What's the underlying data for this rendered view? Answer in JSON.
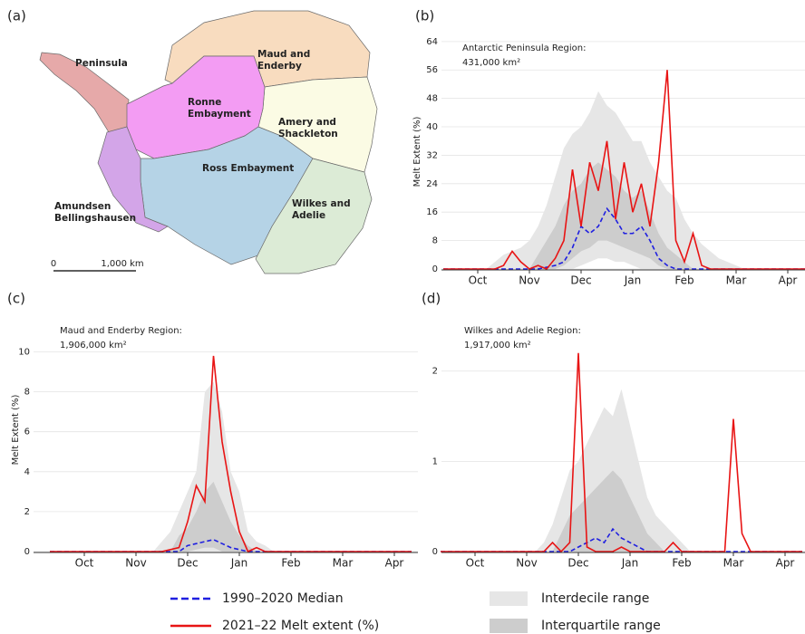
{
  "chart_data": [
    {
      "type": "map",
      "panel": "(a)",
      "regions": [
        {
          "label": [
            "Peninsula"
          ],
          "color": "#e6a9a9"
        },
        {
          "label": [
            "Maud and",
            "Enderby"
          ],
          "color": "#f8dcbf"
        },
        {
          "label": [
            "Amery and",
            "Shackleton"
          ],
          "color": "#fbfbe4"
        },
        {
          "label": [
            "Ronne",
            "Embayment"
          ],
          "color": "#f39cf3"
        },
        {
          "label": [
            "Ross Embayment"
          ],
          "color": "#b5d3e6"
        },
        {
          "label": [
            "Wilkes and",
            "Adelie"
          ],
          "color": "#dcebd6"
        },
        {
          "label": [
            "Amundsen",
            "Bellingshausen"
          ],
          "color": "#d3a5e8"
        }
      ],
      "scale_labels": [
        "0",
        "1,000 km"
      ]
    },
    {
      "type": "line",
      "panel": "(b)",
      "ylabel": "Melt Extent (%)",
      "annotation": [
        "Antarctic Peninsula Region:",
        "431,000 km²"
      ],
      "categories": [
        null,
        null,
        null,
        null,
        "Oct",
        null,
        null,
        null,
        null,
        null,
        "Nov",
        null,
        null,
        null,
        null,
        null,
        "Dec",
        null,
        null,
        null,
        null,
        null,
        "Jan",
        null,
        null,
        null,
        null,
        null,
        "Feb",
        null,
        null,
        null,
        null,
        null,
        "Mar",
        null,
        null,
        null,
        null,
        null,
        "Apr",
        null,
        null
      ],
      "ylim": [
        0,
        66
      ],
      "yticks": [
        0,
        8,
        16,
        24,
        32,
        40,
        48,
        56,
        64
      ],
      "grid": true,
      "series": [
        {
          "name": "Interdecile range",
          "color": "#e6e6e6",
          "low": [
            0,
            0,
            0,
            0,
            0,
            0,
            0,
            0,
            0,
            0,
            0,
            0,
            0,
            0,
            0,
            0,
            1,
            2,
            3,
            3,
            2,
            2,
            1,
            0,
            0,
            0,
            0,
            0,
            0,
            0,
            0,
            0,
            0,
            0,
            0,
            0,
            0,
            0,
            0,
            0,
            0,
            0,
            0
          ],
          "high": [
            0,
            0,
            0,
            0,
            0,
            0,
            2,
            4,
            5,
            6,
            8,
            12,
            18,
            26,
            34,
            38,
            40,
            44,
            50,
            46,
            44,
            40,
            36,
            36,
            30,
            26,
            22,
            20,
            14,
            10,
            7,
            5,
            3,
            2,
            1,
            0,
            0,
            0,
            0,
            0,
            0,
            0,
            0
          ]
        },
        {
          "name": "Interquartile range",
          "color": "#cdcdcd",
          "low": [
            0,
            0,
            0,
            0,
            0,
            0,
            0,
            0,
            0,
            0,
            0,
            0,
            0,
            0,
            1,
            3,
            5,
            6,
            8,
            8,
            7,
            6,
            5,
            4,
            3,
            1,
            0,
            0,
            0,
            0,
            0,
            0,
            0,
            0,
            0,
            0,
            0,
            0,
            0,
            0,
            0,
            0,
            0
          ],
          "high": [
            0,
            0,
            0,
            0,
            0,
            0,
            0,
            0,
            0,
            0,
            0,
            4,
            8,
            12,
            18,
            22,
            24,
            28,
            30,
            28,
            26,
            22,
            20,
            22,
            16,
            10,
            6,
            4,
            2,
            0,
            0,
            0,
            0,
            0,
            0,
            0,
            0,
            0,
            0,
            0,
            0,
            0,
            0
          ]
        },
        {
          "name": "1990–2020 Median",
          "color": "#1f1fe0",
          "dash": true,
          "values": [
            0,
            0,
            0,
            0,
            0,
            0,
            0,
            0,
            0,
            0,
            0,
            0,
            0.5,
            1,
            2,
            6,
            12,
            10,
            12,
            17,
            14,
            10,
            10,
            12,
            8,
            3,
            1,
            0,
            0,
            0,
            0,
            0,
            0,
            0,
            0,
            0,
            0,
            0,
            0,
            0,
            0,
            0,
            0
          ]
        },
        {
          "name": "2021–22 Melt extent (%)",
          "color": "#e81414",
          "values": [
            0,
            0,
            0,
            0,
            0,
            0,
            0,
            1,
            5,
            2,
            0,
            1,
            0,
            3,
            8,
            28,
            12,
            30,
            22,
            36,
            14,
            30,
            16,
            24,
            12,
            30,
            56,
            8,
            2,
            10,
            1,
            0,
            0,
            0,
            0,
            0,
            0,
            0,
            0,
            0,
            0,
            0,
            0
          ]
        }
      ]
    },
    {
      "type": "line",
      "panel": "(c)",
      "ylabel": "Melt Extent (%)",
      "annotation": [
        "Maud and Enderby Region:",
        "1,906,000 km²"
      ],
      "categories": [
        null,
        null,
        null,
        null,
        "Oct",
        null,
        null,
        null,
        null,
        null,
        "Nov",
        null,
        null,
        null,
        null,
        null,
        "Dec",
        null,
        null,
        null,
        null,
        null,
        "Jan",
        null,
        null,
        null,
        null,
        null,
        "Feb",
        null,
        null,
        null,
        null,
        null,
        "Mar",
        null,
        null,
        null,
        null,
        null,
        "Apr",
        null,
        null
      ],
      "ylim": [
        0,
        12.2
      ],
      "yticks": [
        0,
        2,
        4,
        6,
        8,
        10
      ],
      "grid": true,
      "series": [
        {
          "color": "#e6e6e6",
          "low": [
            0,
            0,
            0,
            0,
            0,
            0,
            0,
            0,
            0,
            0,
            0,
            0,
            0,
            0,
            0,
            0,
            0,
            0,
            0,
            0,
            0,
            0,
            0,
            0,
            0,
            0,
            0,
            0,
            0,
            0,
            0,
            0,
            0,
            0,
            0,
            0,
            0,
            0,
            0,
            0,
            0,
            0,
            0
          ],
          "high": [
            0,
            0,
            0,
            0,
            0,
            0,
            0,
            0,
            0,
            0,
            0,
            0,
            0,
            0.5,
            1,
            2,
            3,
            4,
            8,
            8.5,
            7,
            4,
            3,
            1,
            0.5,
            0.3,
            0,
            0,
            0,
            0,
            0,
            0,
            0,
            0,
            0,
            0,
            0,
            0,
            0,
            0,
            0,
            0,
            0
          ]
        },
        {
          "color": "#cdcdcd",
          "low": [
            0,
            0,
            0,
            0,
            0,
            0,
            0,
            0,
            0,
            0,
            0,
            0,
            0,
            0,
            0,
            0,
            0,
            0.1,
            0.2,
            0.2,
            0,
            0,
            0,
            0,
            0,
            0,
            0,
            0,
            0,
            0,
            0,
            0,
            0,
            0,
            0,
            0,
            0,
            0,
            0,
            0,
            0,
            0,
            0
          ],
          "high": [
            0,
            0,
            0,
            0,
            0,
            0,
            0,
            0,
            0,
            0,
            0,
            0,
            0,
            0,
            0,
            0.8,
            1.2,
            2,
            3,
            3.5,
            2.5,
            1.5,
            0.8,
            0.3,
            0,
            0,
            0,
            0,
            0,
            0,
            0,
            0,
            0,
            0,
            0,
            0,
            0,
            0,
            0,
            0,
            0,
            0,
            0
          ]
        },
        {
          "color": "#1f1fe0",
          "dash": true,
          "values": [
            0,
            0,
            0,
            0,
            0,
            0,
            0,
            0,
            0,
            0,
            0,
            0,
            0,
            0,
            0,
            0,
            0.3,
            0.4,
            0.5,
            0.6,
            0.4,
            0.2,
            0.1,
            0,
            0,
            0,
            0,
            0,
            0,
            0,
            0,
            0,
            0,
            0,
            0,
            0,
            0,
            0,
            0,
            0,
            0,
            0,
            0
          ]
        },
        {
          "color": "#e81414",
          "values": [
            0,
            0,
            0,
            0,
            0,
            0,
            0,
            0,
            0,
            0,
            0,
            0,
            0,
            0,
            0.1,
            0.2,
            1.5,
            3.3,
            2.5,
            9.8,
            5.5,
            3,
            1,
            0,
            0.2,
            0,
            0,
            0,
            0,
            0,
            0,
            0,
            0,
            0,
            0,
            0,
            0,
            0,
            0,
            0,
            0,
            0,
            0
          ]
        }
      ]
    },
    {
      "type": "line",
      "panel": "(d)",
      "annotation": [
        "Wilkes and Adelie Region:",
        "1,917,000 km²"
      ],
      "categories": [
        null,
        null,
        null,
        null,
        "Oct",
        null,
        null,
        null,
        null,
        null,
        "Nov",
        null,
        null,
        null,
        null,
        null,
        "Dec",
        null,
        null,
        null,
        null,
        null,
        "Jan",
        null,
        null,
        null,
        null,
        null,
        "Feb",
        null,
        null,
        null,
        null,
        null,
        "Mar",
        null,
        null,
        null,
        null,
        null,
        "Apr",
        null,
        null
      ],
      "ylim": [
        0,
        2.7
      ],
      "yticks": [
        0,
        1,
        2
      ],
      "grid": true,
      "series": [
        {
          "color": "#e6e6e6",
          "low": [
            0,
            0,
            0,
            0,
            0,
            0,
            0,
            0,
            0,
            0,
            0,
            0,
            0,
            0,
            0,
            0,
            0,
            0,
            0,
            0,
            0,
            0,
            0,
            0,
            0,
            0,
            0,
            0,
            0,
            0,
            0,
            0,
            0,
            0,
            0,
            0,
            0,
            0,
            0,
            0,
            0,
            0,
            0
          ],
          "high": [
            0,
            0,
            0,
            0,
            0,
            0,
            0,
            0,
            0,
            0,
            0,
            0,
            0.1,
            0.3,
            0.6,
            0.9,
            1.0,
            1.2,
            1.4,
            1.6,
            1.5,
            1.8,
            1.4,
            1.0,
            0.6,
            0.4,
            0.3,
            0.2,
            0.1,
            0,
            0,
            0,
            0,
            0,
            0,
            0,
            0,
            0,
            0,
            0,
            0,
            0,
            0
          ]
        },
        {
          "color": "#cdcdcd",
          "low": [
            0,
            0,
            0,
            0,
            0,
            0,
            0,
            0,
            0,
            0,
            0,
            0,
            0,
            0,
            0,
            0,
            0,
            0,
            0,
            0,
            0,
            0,
            0,
            0,
            0,
            0,
            0,
            0,
            0,
            0,
            0,
            0,
            0,
            0,
            0,
            0,
            0,
            0,
            0,
            0,
            0,
            0,
            0
          ],
          "high": [
            0,
            0,
            0,
            0,
            0,
            0,
            0,
            0,
            0,
            0,
            0,
            0,
            0,
            0,
            0.2,
            0.4,
            0.5,
            0.6,
            0.7,
            0.8,
            0.9,
            0.8,
            0.6,
            0.4,
            0.2,
            0.1,
            0,
            0,
            0,
            0,
            0,
            0,
            0,
            0,
            0,
            0,
            0,
            0,
            0,
            0,
            0,
            0,
            0
          ]
        },
        {
          "color": "#1f1fe0",
          "dash": true,
          "values": [
            0,
            0,
            0,
            0,
            0,
            0,
            0,
            0,
            0,
            0,
            0,
            0,
            0,
            0,
            0,
            0,
            0.05,
            0.1,
            0.15,
            0.1,
            0.25,
            0.15,
            0.1,
            0.05,
            0,
            0,
            0,
            0,
            0,
            0,
            0,
            0,
            0,
            0,
            0,
            0,
            0,
            0,
            0,
            0,
            0,
            0,
            0
          ]
        },
        {
          "color": "#e81414",
          "values": [
            0,
            0,
            0,
            0,
            0,
            0,
            0,
            0,
            0,
            0,
            0,
            0,
            0,
            0.1,
            0,
            0.1,
            2.2,
            0.05,
            0,
            0,
            0,
            0.05,
            0,
            0,
            0,
            0,
            0,
            0.1,
            0,
            0,
            0,
            0,
            0,
            0,
            1.47,
            0.2,
            0,
            0,
            0,
            0,
            0,
            0,
            0
          ]
        }
      ]
    }
  ]
}
